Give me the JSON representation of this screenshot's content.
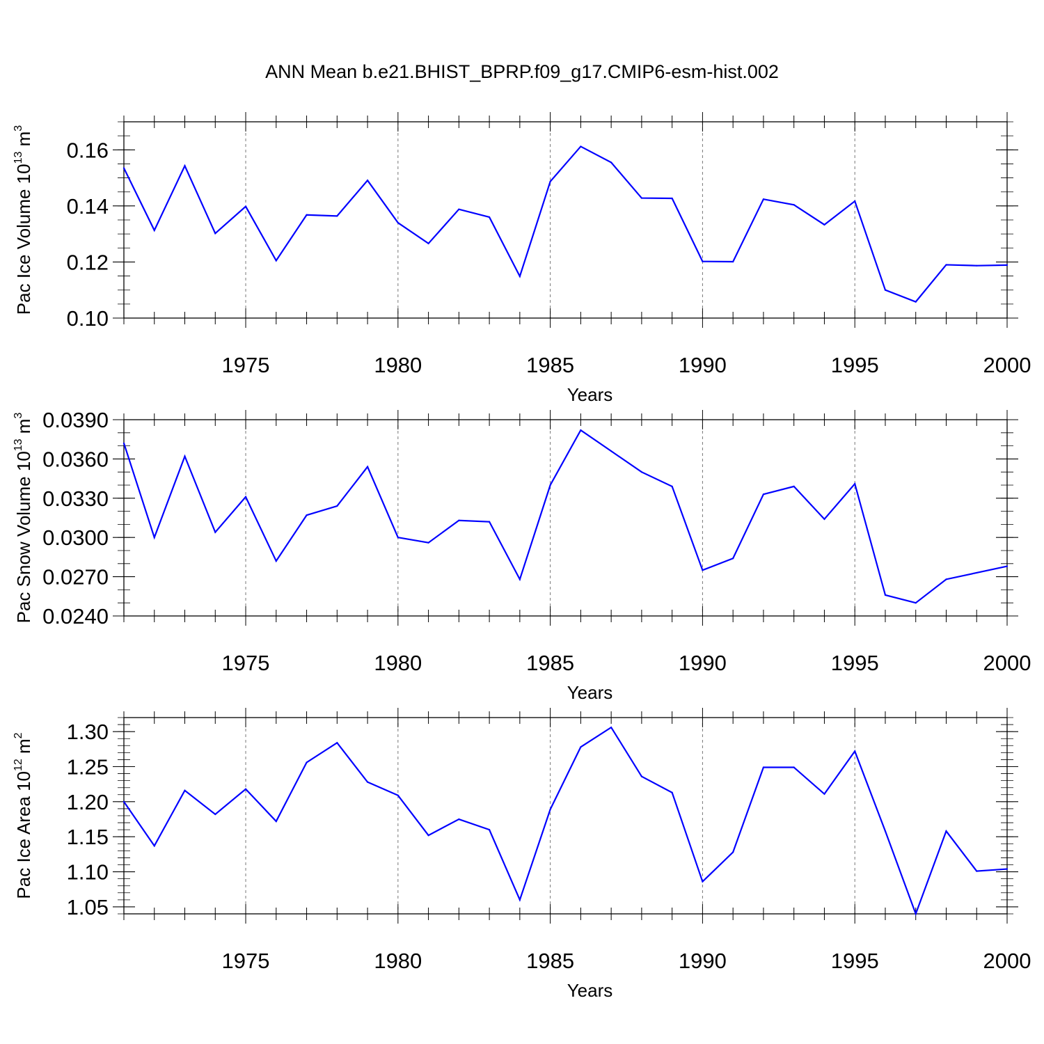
{
  "title": "ANN Mean b.e21.BHIST_BPRP.f09_g17.CMIP6-esm-hist.002",
  "line_color": "#0000ff",
  "chart_data": [
    {
      "type": "line",
      "xlabel": "Years",
      "ylabel": {
        "base": "Pac Ice Volume 10",
        "exp": "13",
        "unit": " m",
        "unit_exp": "3"
      },
      "xlim": [
        1971,
        2000
      ],
      "ylim": [
        0.1,
        0.17
      ],
      "x_ticks": [
        1975,
        1980,
        1985,
        1990,
        1995,
        2000
      ],
      "y_ticks": [
        "0.10",
        "0.12",
        "0.14",
        "0.16"
      ],
      "y_tick_values": [
        0.1,
        0.12,
        0.14,
        0.16
      ],
      "y_minor_step": 0.005,
      "grid": "vertical-dashed",
      "x": [
        1971,
        1972,
        1973,
        1974,
        1975,
        1976,
        1977,
        1978,
        1979,
        1980,
        1981,
        1982,
        1983,
        1984,
        1985,
        1986,
        1987,
        1988,
        1989,
        1990,
        1991,
        1992,
        1993,
        1994,
        1995,
        1996,
        1997,
        1998,
        1999,
        2000
      ],
      "values": [
        0.1535,
        0.1313,
        0.1543,
        0.1302,
        0.1398,
        0.1205,
        0.1368,
        0.1364,
        0.1491,
        0.134,
        0.1266,
        0.1388,
        0.136,
        0.1149,
        0.1487,
        0.1612,
        0.1555,
        0.1428,
        0.1427,
        0.1202,
        0.1201,
        0.1424,
        0.1404,
        0.1333,
        0.1417,
        0.11,
        0.1058,
        0.119,
        0.1187,
        0.1189
      ]
    },
    {
      "type": "line",
      "xlabel": "Years",
      "ylabel": {
        "base": "Pac Snow Volume 10",
        "exp": "13",
        "unit": " m",
        "unit_exp": "3"
      },
      "xlim": [
        1971,
        2000
      ],
      "ylim": [
        0.024,
        0.039
      ],
      "x_ticks": [
        1975,
        1980,
        1985,
        1990,
        1995,
        2000
      ],
      "y_ticks": [
        "0.0240",
        "0.0270",
        "0.0300",
        "0.0330",
        "0.0360",
        "0.0390"
      ],
      "y_tick_values": [
        0.024,
        0.027,
        0.03,
        0.033,
        0.036,
        0.039
      ],
      "y_minor_step": 0.001,
      "grid": "vertical-dashed",
      "x": [
        1971,
        1972,
        1973,
        1974,
        1975,
        1976,
        1977,
        1978,
        1979,
        1980,
        1981,
        1982,
        1983,
        1984,
        1985,
        1986,
        1987,
        1988,
        1989,
        1990,
        1991,
        1992,
        1993,
        1994,
        1995,
        1996,
        1997,
        1998,
        1999,
        2000
      ],
      "values": [
        0.0372,
        0.03,
        0.0362,
        0.0304,
        0.0331,
        0.0282,
        0.0317,
        0.0324,
        0.0354,
        0.03,
        0.0296,
        0.0313,
        0.0312,
        0.0268,
        0.034,
        0.0382,
        0.0366,
        0.035,
        0.0339,
        0.0275,
        0.0284,
        0.0333,
        0.0339,
        0.0314,
        0.0341,
        0.0256,
        0.025,
        0.0268,
        0.0273,
        0.0278
      ]
    },
    {
      "type": "line",
      "xlabel": "Years",
      "ylabel": {
        "base": "Pac Ice Area 10",
        "exp": "12",
        "unit": " m",
        "unit_exp": "2"
      },
      "xlim": [
        1971,
        2000
      ],
      "ylim": [
        1.04,
        1.32
      ],
      "x_ticks": [
        1975,
        1980,
        1985,
        1990,
        1995,
        2000
      ],
      "y_ticks": [
        "1.05",
        "1.10",
        "1.15",
        "1.20",
        "1.25",
        "1.30"
      ],
      "y_tick_values": [
        1.05,
        1.1,
        1.15,
        1.2,
        1.25,
        1.3
      ],
      "y_minor_step": 0.01,
      "grid": "vertical-dashed",
      "x": [
        1971,
        1972,
        1973,
        1974,
        1975,
        1976,
        1977,
        1978,
        1979,
        1980,
        1981,
        1982,
        1983,
        1984,
        1985,
        1986,
        1987,
        1988,
        1989,
        1990,
        1991,
        1992,
        1993,
        1994,
        1995,
        1996,
        1997,
        1998,
        1999,
        2000
      ],
      "values": [
        1.2,
        1.137,
        1.216,
        1.182,
        1.218,
        1.172,
        1.256,
        1.284,
        1.228,
        1.209,
        1.152,
        1.175,
        1.16,
        1.06,
        1.189,
        1.278,
        1.306,
        1.236,
        1.213,
        1.086,
        1.128,
        1.249,
        1.249,
        1.211,
        1.272,
        1.158,
        1.04,
        1.158,
        1.101,
        1.104
      ]
    }
  ]
}
